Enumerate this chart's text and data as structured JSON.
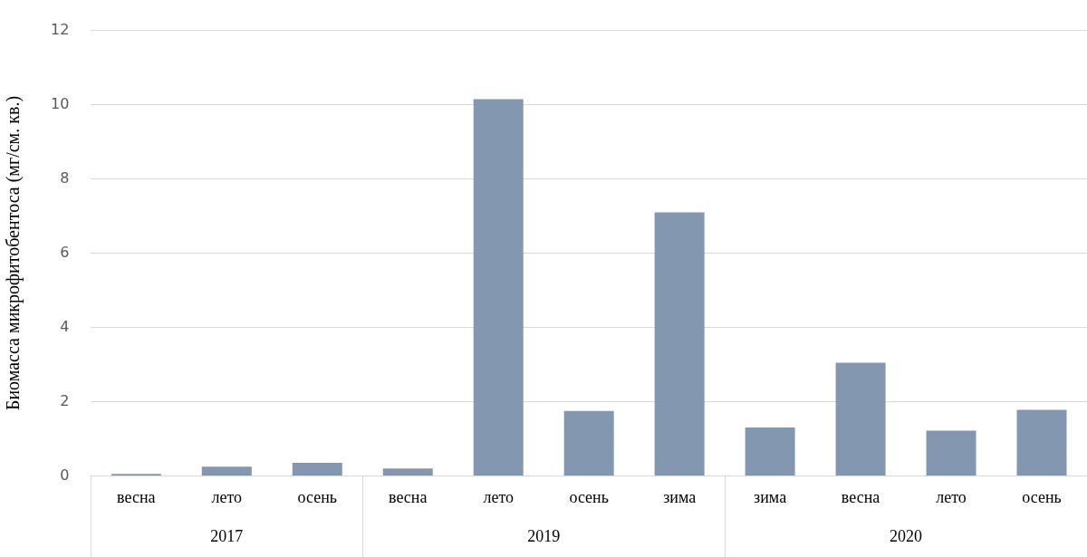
{
  "chart_data": {
    "type": "bar",
    "ylabel": "Биомасса микрофитобентоса (мг/см. кв.)",
    "categories": [
      "весна",
      "лето",
      "осень",
      "весна",
      "лето",
      "осень",
      "зима",
      "зима",
      "весна",
      "лето",
      "осень"
    ],
    "values": [
      0.05,
      0.25,
      0.35,
      0.2,
      10.15,
      1.75,
      7.1,
      1.3,
      3.05,
      1.22,
      1.78
    ],
    "color": "#8497b0",
    "ylim": [
      0,
      12
    ],
    "yticks": [
      0,
      2,
      4,
      6,
      8,
      10,
      12
    ],
    "grid": "y",
    "legend": false,
    "annotations": [
      "2017",
      "2019",
      "2020"
    ]
  }
}
